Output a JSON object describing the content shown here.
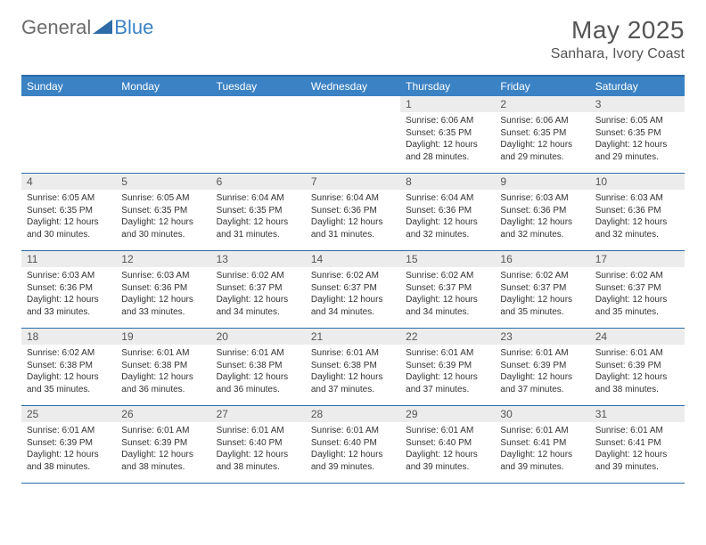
{
  "logo": {
    "text1": "General",
    "text2": "Blue"
  },
  "title": "May 2025",
  "location": "Sanhara, Ivory Coast",
  "colors": {
    "header_bar": "#3b82c4",
    "border": "#2d6ca8",
    "daynum_bg": "#ececec",
    "text": "#333333",
    "title_text": "#555555",
    "logo_gray": "#6b6b6b",
    "logo_blue": "#3b82c4",
    "background": "#ffffff"
  },
  "weekdays": [
    "Sunday",
    "Monday",
    "Tuesday",
    "Wednesday",
    "Thursday",
    "Friday",
    "Saturday"
  ],
  "weeks": [
    [
      {
        "n": "",
        "empty": true
      },
      {
        "n": "",
        "empty": true
      },
      {
        "n": "",
        "empty": true
      },
      {
        "n": "",
        "empty": true
      },
      {
        "n": "1",
        "sr": "6:06 AM",
        "ss": "6:35 PM",
        "dl": "12 hours and 28 minutes."
      },
      {
        "n": "2",
        "sr": "6:06 AM",
        "ss": "6:35 PM",
        "dl": "12 hours and 29 minutes."
      },
      {
        "n": "3",
        "sr": "6:05 AM",
        "ss": "6:35 PM",
        "dl": "12 hours and 29 minutes."
      }
    ],
    [
      {
        "n": "4",
        "sr": "6:05 AM",
        "ss": "6:35 PM",
        "dl": "12 hours and 30 minutes."
      },
      {
        "n": "5",
        "sr": "6:05 AM",
        "ss": "6:35 PM",
        "dl": "12 hours and 30 minutes."
      },
      {
        "n": "6",
        "sr": "6:04 AM",
        "ss": "6:35 PM",
        "dl": "12 hours and 31 minutes."
      },
      {
        "n": "7",
        "sr": "6:04 AM",
        "ss": "6:36 PM",
        "dl": "12 hours and 31 minutes."
      },
      {
        "n": "8",
        "sr": "6:04 AM",
        "ss": "6:36 PM",
        "dl": "12 hours and 32 minutes."
      },
      {
        "n": "9",
        "sr": "6:03 AM",
        "ss": "6:36 PM",
        "dl": "12 hours and 32 minutes."
      },
      {
        "n": "10",
        "sr": "6:03 AM",
        "ss": "6:36 PM",
        "dl": "12 hours and 32 minutes."
      }
    ],
    [
      {
        "n": "11",
        "sr": "6:03 AM",
        "ss": "6:36 PM",
        "dl": "12 hours and 33 minutes."
      },
      {
        "n": "12",
        "sr": "6:03 AM",
        "ss": "6:36 PM",
        "dl": "12 hours and 33 minutes."
      },
      {
        "n": "13",
        "sr": "6:02 AM",
        "ss": "6:37 PM",
        "dl": "12 hours and 34 minutes."
      },
      {
        "n": "14",
        "sr": "6:02 AM",
        "ss": "6:37 PM",
        "dl": "12 hours and 34 minutes."
      },
      {
        "n": "15",
        "sr": "6:02 AM",
        "ss": "6:37 PM",
        "dl": "12 hours and 34 minutes."
      },
      {
        "n": "16",
        "sr": "6:02 AM",
        "ss": "6:37 PM",
        "dl": "12 hours and 35 minutes."
      },
      {
        "n": "17",
        "sr": "6:02 AM",
        "ss": "6:37 PM",
        "dl": "12 hours and 35 minutes."
      }
    ],
    [
      {
        "n": "18",
        "sr": "6:02 AM",
        "ss": "6:38 PM",
        "dl": "12 hours and 35 minutes."
      },
      {
        "n": "19",
        "sr": "6:01 AM",
        "ss": "6:38 PM",
        "dl": "12 hours and 36 minutes."
      },
      {
        "n": "20",
        "sr": "6:01 AM",
        "ss": "6:38 PM",
        "dl": "12 hours and 36 minutes."
      },
      {
        "n": "21",
        "sr": "6:01 AM",
        "ss": "6:38 PM",
        "dl": "12 hours and 37 minutes."
      },
      {
        "n": "22",
        "sr": "6:01 AM",
        "ss": "6:39 PM",
        "dl": "12 hours and 37 minutes."
      },
      {
        "n": "23",
        "sr": "6:01 AM",
        "ss": "6:39 PM",
        "dl": "12 hours and 37 minutes."
      },
      {
        "n": "24",
        "sr": "6:01 AM",
        "ss": "6:39 PM",
        "dl": "12 hours and 38 minutes."
      }
    ],
    [
      {
        "n": "25",
        "sr": "6:01 AM",
        "ss": "6:39 PM",
        "dl": "12 hours and 38 minutes."
      },
      {
        "n": "26",
        "sr": "6:01 AM",
        "ss": "6:39 PM",
        "dl": "12 hours and 38 minutes."
      },
      {
        "n": "27",
        "sr": "6:01 AM",
        "ss": "6:40 PM",
        "dl": "12 hours and 38 minutes."
      },
      {
        "n": "28",
        "sr": "6:01 AM",
        "ss": "6:40 PM",
        "dl": "12 hours and 39 minutes."
      },
      {
        "n": "29",
        "sr": "6:01 AM",
        "ss": "6:40 PM",
        "dl": "12 hours and 39 minutes."
      },
      {
        "n": "30",
        "sr": "6:01 AM",
        "ss": "6:41 PM",
        "dl": "12 hours and 39 minutes."
      },
      {
        "n": "31",
        "sr": "6:01 AM",
        "ss": "6:41 PM",
        "dl": "12 hours and 39 minutes."
      }
    ]
  ],
  "labels": {
    "sunrise": "Sunrise:",
    "sunset": "Sunset:",
    "daylight": "Daylight:"
  }
}
